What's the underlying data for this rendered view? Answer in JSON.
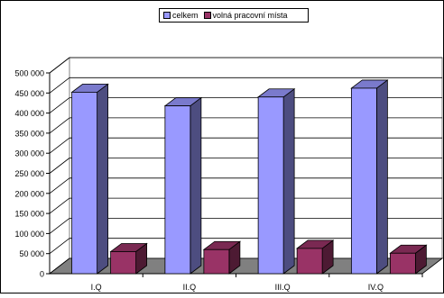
{
  "chart_data": {
    "type": "bar",
    "categories": [
      "I.Q",
      "II.Q",
      "III.Q",
      "IV.Q"
    ],
    "series": [
      {
        "name": "celkem",
        "values": [
          452000,
          418000,
          440000,
          462000
        ],
        "color": "#9999ff",
        "side": "#4d4d80",
        "top": "#7a7acc"
      },
      {
        "name": "volná pracovní místa",
        "values": [
          55000,
          60000,
          63000,
          51000
        ],
        "color": "#993366",
        "side": "#4d1a33",
        "top": "#7a2952"
      }
    ],
    "yticks": [
      "0",
      "50 000",
      "100 000",
      "150 000",
      "200 000",
      "250 000",
      "300 000",
      "350 000",
      "400 000",
      "450 000",
      "500 000"
    ],
    "ylim": [
      0,
      500000
    ],
    "grid": true,
    "legend_position": "top",
    "title": "",
    "xlabel": "",
    "ylabel": ""
  }
}
